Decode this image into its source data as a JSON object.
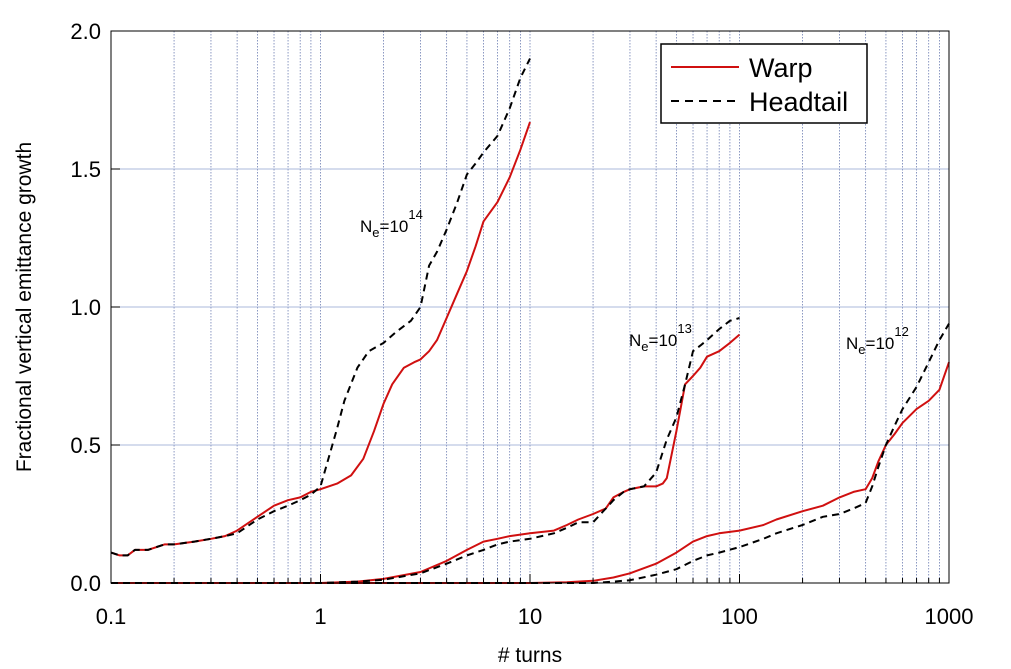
{
  "chart_data": {
    "type": "line",
    "title": "",
    "xlabel": "# turns",
    "ylabel": "Fractional vertical emittance growth",
    "xscale": "log",
    "xlim": [
      0.1,
      1000
    ],
    "ylim": [
      0,
      2.0
    ],
    "x_ticks": [
      "0.1",
      "1",
      "10",
      "100",
      "1000"
    ],
    "y_ticks": [
      "0.0",
      "0.5",
      "1.0",
      "1.5",
      "2.0"
    ],
    "grid": true,
    "legend": {
      "placement": "top-right",
      "entries": [
        "Warp",
        "Headtail"
      ]
    },
    "colors": {
      "Warp": "#d01010",
      "Headtail": "#000000"
    },
    "styles": {
      "Warp": "solid",
      "Headtail": "dashed"
    },
    "annotations": [
      {
        "base": "N",
        "sub": "e",
        "text": "=10",
        "sup": "14"
      },
      {
        "base": "N",
        "sub": "e",
        "text": "=10",
        "sup": "13"
      },
      {
        "base": "N",
        "sub": "e",
        "text": "=10",
        "sup": "12"
      }
    ],
    "series": [
      {
        "name": "Warp",
        "case": "Ne=10^14",
        "x": [
          0.1,
          0.11,
          0.12,
          0.13,
          0.15,
          0.18,
          0.2,
          0.25,
          0.3,
          0.35,
          0.4,
          0.5,
          0.6,
          0.7,
          0.8,
          0.9,
          1.0,
          1.2,
          1.4,
          1.6,
          1.8,
          2.0,
          2.2,
          2.5,
          2.8,
          3.0,
          3.3,
          3.6,
          4.0,
          4.5,
          5.0,
          5.5,
          6.0,
          7.0,
          8.0,
          9.0,
          10.0
        ],
        "y": [
          0.11,
          0.1,
          0.1,
          0.12,
          0.12,
          0.14,
          0.14,
          0.15,
          0.16,
          0.17,
          0.19,
          0.24,
          0.28,
          0.3,
          0.31,
          0.33,
          0.34,
          0.36,
          0.39,
          0.45,
          0.55,
          0.65,
          0.72,
          0.78,
          0.8,
          0.81,
          0.84,
          0.88,
          0.96,
          1.05,
          1.13,
          1.22,
          1.31,
          1.38,
          1.47,
          1.57,
          1.67
        ]
      },
      {
        "name": "Headtail",
        "case": "Ne=10^14",
        "x": [
          0.1,
          0.11,
          0.12,
          0.13,
          0.15,
          0.18,
          0.2,
          0.25,
          0.3,
          0.35,
          0.4,
          0.5,
          0.6,
          0.7,
          0.8,
          0.9,
          1.0,
          1.1,
          1.2,
          1.3,
          1.5,
          1.7,
          2.0,
          2.3,
          2.7,
          3.0,
          3.3,
          3.6,
          4.0,
          4.5,
          5.0,
          5.5,
          6.0,
          7.0,
          8.0,
          9.0,
          10.0
        ],
        "y": [
          0.11,
          0.1,
          0.1,
          0.12,
          0.12,
          0.14,
          0.14,
          0.15,
          0.16,
          0.17,
          0.18,
          0.23,
          0.26,
          0.28,
          0.3,
          0.32,
          0.35,
          0.46,
          0.56,
          0.66,
          0.78,
          0.84,
          0.87,
          0.91,
          0.95,
          1.0,
          1.15,
          1.2,
          1.28,
          1.38,
          1.48,
          1.52,
          1.56,
          1.62,
          1.72,
          1.83,
          1.9
        ]
      },
      {
        "name": "Warp",
        "case": "Ne=10^13",
        "x": [
          0.1,
          0.5,
          1.0,
          1.5,
          2.0,
          3.0,
          4.0,
          5.0,
          6.0,
          7.0,
          8.0,
          10.0,
          13.0,
          15.0,
          17.0,
          20.0,
          23.0,
          25.0,
          28.0,
          30.0,
          35.0,
          40.0,
          43.0,
          45.0,
          50.0,
          55.0,
          60.0,
          65.0,
          70.0,
          80.0,
          90.0,
          100.0
        ],
        "y": [
          0.0,
          0.0,
          0.0,
          0.005,
          0.015,
          0.04,
          0.08,
          0.12,
          0.15,
          0.16,
          0.17,
          0.18,
          0.19,
          0.21,
          0.23,
          0.25,
          0.27,
          0.31,
          0.33,
          0.34,
          0.35,
          0.35,
          0.36,
          0.38,
          0.55,
          0.72,
          0.75,
          0.78,
          0.82,
          0.84,
          0.87,
          0.9
        ]
      },
      {
        "name": "Headtail",
        "case": "Ne=10^13",
        "x": [
          0.1,
          0.5,
          1.0,
          1.5,
          2.0,
          3.0,
          4.0,
          5.0,
          6.0,
          7.0,
          8.0,
          10.0,
          13.0,
          15.0,
          17.0,
          20.0,
          23.0,
          25.0,
          28.0,
          30.0,
          35.0,
          40.0,
          45.0,
          50.0,
          55.0,
          60.0,
          65.0,
          70.0,
          80.0,
          90.0,
          100.0
        ],
        "y": [
          0.0,
          0.0,
          0.0,
          0.005,
          0.012,
          0.035,
          0.07,
          0.1,
          0.12,
          0.14,
          0.15,
          0.16,
          0.18,
          0.2,
          0.22,
          0.22,
          0.27,
          0.3,
          0.33,
          0.34,
          0.35,
          0.4,
          0.52,
          0.6,
          0.72,
          0.84,
          0.86,
          0.88,
          0.92,
          0.95,
          0.96
        ]
      },
      {
        "name": "Warp",
        "case": "Ne=10^12",
        "x": [
          0.1,
          1.0,
          10.0,
          15.0,
          20.0,
          25.0,
          30.0,
          40.0,
          50.0,
          60.0,
          70.0,
          80.0,
          100.0,
          130.0,
          150.0,
          200.0,
          250.0,
          300.0,
          350.0,
          400.0,
          430.0,
          460.0,
          500.0,
          550.0,
          600.0,
          700.0,
          800.0,
          900.0,
          1000.0
        ],
        "y": [
          0.0,
          0.0,
          0.0,
          0.003,
          0.008,
          0.02,
          0.035,
          0.07,
          0.11,
          0.15,
          0.17,
          0.18,
          0.19,
          0.21,
          0.23,
          0.26,
          0.28,
          0.31,
          0.33,
          0.34,
          0.38,
          0.44,
          0.5,
          0.54,
          0.58,
          0.63,
          0.66,
          0.7,
          0.8
        ]
      },
      {
        "name": "Headtail",
        "case": "Ne=10^12",
        "x": [
          0.1,
          1.0,
          10.0,
          20.0,
          25.0,
          30.0,
          40.0,
          50.0,
          60.0,
          70.0,
          80.0,
          100.0,
          130.0,
          150.0,
          200.0,
          250.0,
          300.0,
          350.0,
          400.0,
          430.0,
          460.0,
          500.0,
          550.0,
          600.0,
          700.0,
          800.0,
          900.0,
          1000.0
        ],
        "y": [
          0.0,
          0.0,
          0.0,
          0.0,
          0.005,
          0.01,
          0.03,
          0.05,
          0.08,
          0.1,
          0.11,
          0.13,
          0.16,
          0.18,
          0.21,
          0.24,
          0.25,
          0.27,
          0.29,
          0.35,
          0.42,
          0.5,
          0.57,
          0.63,
          0.71,
          0.8,
          0.88,
          0.94
        ]
      }
    ]
  }
}
